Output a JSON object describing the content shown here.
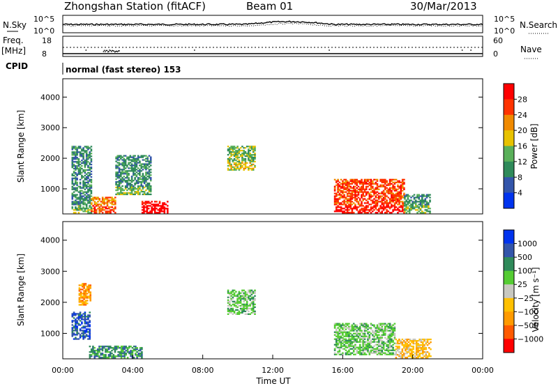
{
  "header": {
    "station": "Zhongshan Station (fitACF)",
    "beam": "Beam 01",
    "date": "30/Mar/2013"
  },
  "noise_panel": {
    "left_label": "N.Sky",
    "right_label": "N.Search",
    "left_ticks": [
      "10^5",
      "10^0"
    ],
    "right_ticks": [
      "10^5",
      "10^0"
    ]
  },
  "freq_panel": {
    "left_label_1": "Freq.",
    "left_label_2": "[MHz]",
    "right_label": "Nave",
    "left_ticks": [
      "18",
      "8"
    ],
    "right_ticks": [
      "60",
      "0"
    ]
  },
  "cpid": {
    "label": "CPID",
    "text": "normal (fast stereo) 153"
  },
  "colors": {
    "power": [
      "#0033ee",
      "#3355aa",
      "#2f8a5a",
      "#5ab05a",
      "#e8c200",
      "#f08a00",
      "#ff3300",
      "#ff0000"
    ],
    "velocity": [
      "#ff0000",
      "#ff5a00",
      "#ff9a00",
      "#ffc000",
      "#c8c8c0",
      "#55cc33",
      "#2f8a5a",
      "#3355aa",
      "#0033ee"
    ]
  },
  "chart_data": [
    {
      "type": "heatmap",
      "name": "power",
      "ylabel": "Slant Range [km]",
      "y_ticks": [
        1000,
        2000,
        3000,
        4000
      ],
      "ylim": [
        180,
        4600
      ],
      "xlim": [
        0,
        24
      ],
      "colorbar": {
        "label": "Power [dB]",
        "ticks": [
          "4",
          "8",
          "12",
          "16",
          "20",
          "24",
          "28"
        ],
        "range": [
          0,
          32
        ]
      },
      "regions": [
        {
          "t0": 0.5,
          "t1": 1.6,
          "r0": 200,
          "r1": 2400,
          "dominant": "8"
        },
        {
          "t0": 1.6,
          "t1": 3.0,
          "r0": 200,
          "r1": 700,
          "dominant": "20"
        },
        {
          "t0": 3.0,
          "t1": 5.0,
          "r0": 800,
          "r1": 2100,
          "dominant": "8"
        },
        {
          "t0": 4.5,
          "t1": 6.0,
          "r0": 200,
          "r1": 600,
          "dominant": "28"
        },
        {
          "t0": 9.4,
          "t1": 11.0,
          "r0": 1600,
          "r1": 2400,
          "dominant": "12"
        },
        {
          "t0": 15.5,
          "t1": 19.5,
          "r0": 200,
          "r1": 1300,
          "dominant": "24"
        },
        {
          "t0": 19.5,
          "t1": 21.0,
          "r0": 200,
          "r1": 800,
          "dominant": "8"
        }
      ]
    },
    {
      "type": "heatmap",
      "name": "velocity",
      "ylabel": "Slant Range [km]",
      "y_ticks": [
        1000,
        2000,
        3000,
        4000
      ],
      "ylim": [
        180,
        4600
      ],
      "xlim": [
        0,
        24
      ],
      "xlabel": "Time UT",
      "x_ticks": [
        "00:00",
        "04:00",
        "08:00",
        "12:00",
        "16:00",
        "20:00",
        "00:00"
      ],
      "colorbar": {
        "label": "Velocity [m s⁻¹]",
        "ticks": [
          "1000",
          "500",
          "100",
          "25",
          "−25",
          "−100",
          "−500",
          "−1000"
        ]
      },
      "regions": [
        {
          "t0": 0.5,
          "t1": 1.5,
          "r0": 800,
          "r1": 1700,
          "dominant": "500"
        },
        {
          "t0": 0.9,
          "t1": 1.6,
          "r0": 1900,
          "r1": 2600,
          "dominant": "−500"
        },
        {
          "t0": 1.5,
          "t1": 4.5,
          "r0": 200,
          "r1": 600,
          "dominant": "100"
        },
        {
          "t0": 9.4,
          "t1": 11.0,
          "r0": 1600,
          "r1": 2400,
          "dominant": "25"
        },
        {
          "t0": 15.5,
          "t1": 19.0,
          "r0": 300,
          "r1": 1300,
          "dominant": "25"
        },
        {
          "t0": 19.0,
          "t1": 21.0,
          "r0": 200,
          "r1": 800,
          "dominant": "−100"
        }
      ]
    }
  ]
}
